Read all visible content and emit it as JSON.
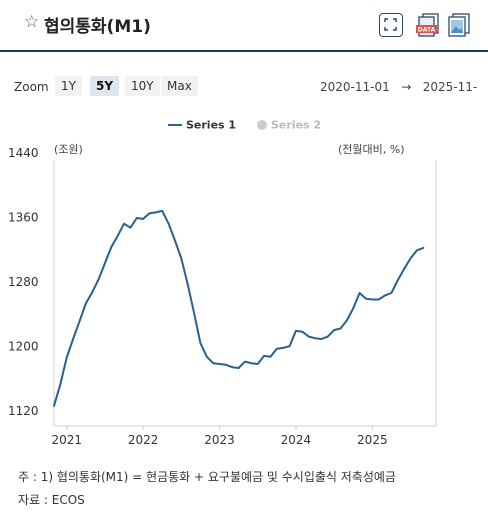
{
  "header": {
    "title": "협의통화(M1)",
    "star_icon": "star-outline-icon",
    "expand_icon": "expand-icon",
    "data_icon": "data-download-icon",
    "data_label": "DATA",
    "image_icon": "image-download-icon",
    "accent_color": "#1f3a5a"
  },
  "toolbar": {
    "zoom_label": "Zoom",
    "zoom_options": [
      "1Y",
      "5Y",
      "10Y",
      "Max"
    ],
    "zoom_selected": "5Y",
    "range_start": "2020-11-01",
    "range_arrow": "→",
    "range_end": "2025-11-"
  },
  "chart_data": {
    "type": "line",
    "title": "",
    "left_unit": "(조원)",
    "right_unit": "(전월대비, %)",
    "ylim": [
      1120,
      1440
    ],
    "y_ticks": [
      1120,
      1200,
      1280,
      1360,
      1440
    ],
    "x_range": [
      "2020-11",
      "2025-11"
    ],
    "x_tick_labels": [
      "2021",
      "2022",
      "2023",
      "2024",
      "2025"
    ],
    "x_ticks": [
      "2021-01",
      "2022-01",
      "2023-01",
      "2024-01",
      "2025-01"
    ],
    "series": [
      {
        "name": "Series 1",
        "color": "#2a5f8f",
        "visible": true,
        "x": [
          "2020-11",
          "2020-12",
          "2021-01",
          "2021-02",
          "2021-03",
          "2021-04",
          "2021-05",
          "2021-06",
          "2021-07",
          "2021-08",
          "2021-09",
          "2021-10",
          "2021-11",
          "2021-12",
          "2022-01",
          "2022-02",
          "2022-03",
          "2022-04",
          "2022-05",
          "2022-06",
          "2022-07",
          "2022-08",
          "2022-09",
          "2022-10",
          "2022-11",
          "2022-12",
          "2023-01",
          "2023-02",
          "2023-03",
          "2023-04",
          "2023-05",
          "2023-06",
          "2023-07",
          "2023-08",
          "2023-09",
          "2023-10",
          "2023-11",
          "2023-12",
          "2024-01",
          "2024-02",
          "2024-03",
          "2024-04",
          "2024-05",
          "2024-06",
          "2024-07",
          "2024-08",
          "2024-09",
          "2024-10",
          "2024-11",
          "2024-12",
          "2025-01",
          "2025-02",
          "2025-03",
          "2025-04",
          "2025-05",
          "2025-06",
          "2025-07",
          "2025-08",
          "2025-09"
        ],
        "values": [
          1135,
          1162,
          1195,
          1218,
          1240,
          1262,
          1276,
          1292,
          1312,
          1332,
          1346,
          1361,
          1356,
          1368,
          1367,
          1374,
          1375,
          1377,
          1361,
          1340,
          1318,
          1286,
          1250,
          1213,
          1196,
          1188,
          1187,
          1186,
          1183,
          1182,
          1190,
          1188,
          1187,
          1197,
          1196,
          1206,
          1207,
          1209,
          1228,
          1227,
          1221,
          1219,
          1218,
          1221,
          1229,
          1231,
          1241,
          1256,
          1275,
          1268,
          1267,
          1267,
          1272,
          1275,
          1291,
          1305,
          1318,
          1328,
          1331
        ]
      },
      {
        "name": "Series 2",
        "visible": false,
        "values": []
      }
    ],
    "legend": "top-center",
    "grid": false
  },
  "footer": {
    "note": "주 : 1) 협의통화(M1) = 현금통화 + 요구불예금 및 수시입출식 저축성예금",
    "source": "자료 :  ECOS"
  }
}
